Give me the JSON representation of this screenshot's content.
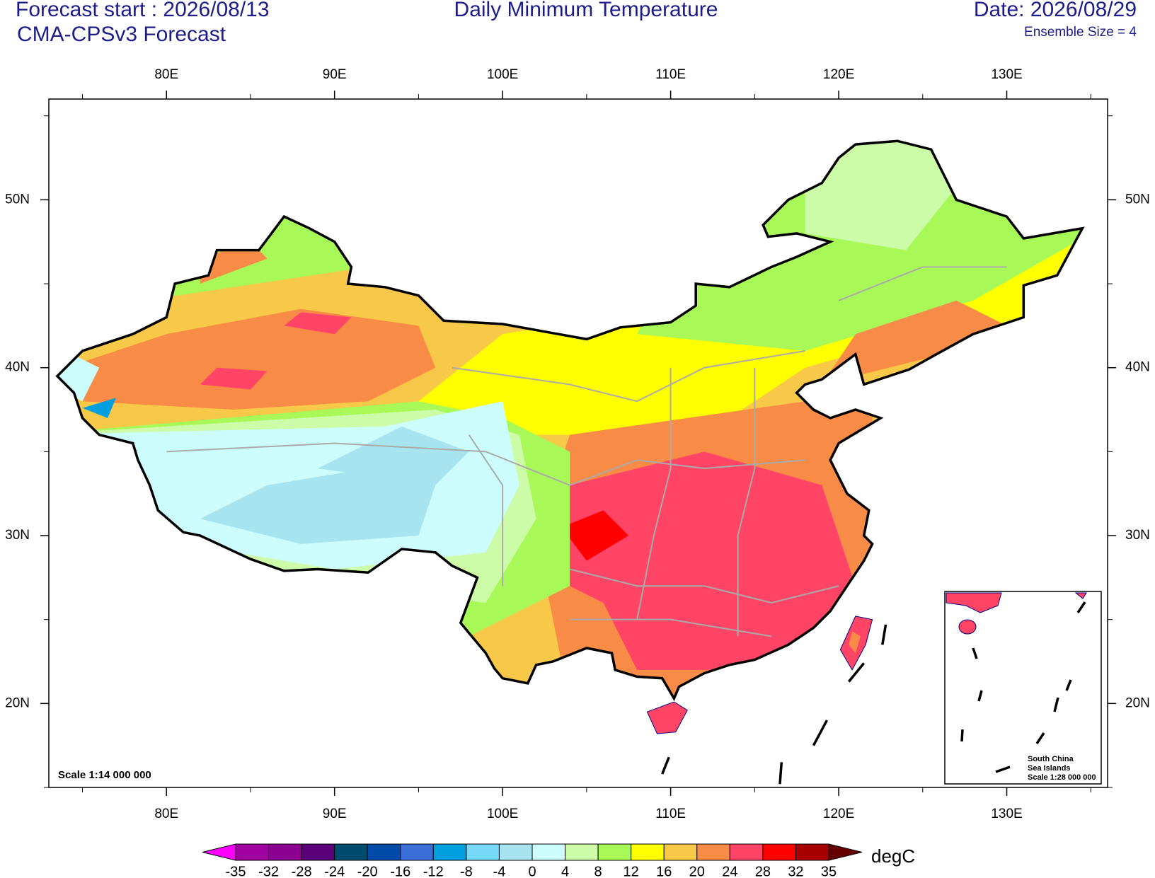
{
  "header": {
    "forecast_start": "Forecast start : 2026/08/13",
    "model": "CMA-CPSv3 Forecast",
    "title": "Daily Minimum Temperature",
    "date": "Date: 2026/08/29",
    "ensemble": "Ensemble Size = 4"
  },
  "map": {
    "lonlim": [
      73,
      136
    ],
    "latlim": [
      15,
      56
    ],
    "lon_ticks": [
      {
        "value": 80,
        "label": "80E"
      },
      {
        "value": 90,
        "label": "90E"
      },
      {
        "value": 100,
        "label": "100E"
      },
      {
        "value": 110,
        "label": "110E"
      },
      {
        "value": 120,
        "label": "120E"
      },
      {
        "value": 130,
        "label": "130E"
      }
    ],
    "lat_ticks": [
      {
        "value": 20,
        "label": "20N"
      },
      {
        "value": 30,
        "label": "30N"
      },
      {
        "value": 40,
        "label": "40N"
      },
      {
        "value": 50,
        "label": "50N"
      }
    ],
    "scale": "Scale 1:14 000 000",
    "inset": {
      "lines": [
        "South China",
        "Sea Islands",
        "Scale 1:28 000 000"
      ]
    }
  },
  "colorbar": {
    "levels": [
      -35,
      -32,
      -28,
      -24,
      -20,
      -16,
      -12,
      -8,
      -4,
      0,
      4,
      8,
      12,
      16,
      20,
      24,
      28,
      32,
      35
    ],
    "colors": [
      "#ff00ff",
      "#a000a0",
      "#8c0090",
      "#5a0078",
      "#004c6e",
      "#004ca8",
      "#3c6ed8",
      "#00a0e0",
      "#78d8f8",
      "#a8e4f0",
      "#ccfcfc",
      "#ccfca8",
      "#a8f858",
      "#ffff00",
      "#f8c848",
      "#f88c46",
      "#ff4466",
      "#ff0000",
      "#a80000",
      "#640000"
    ],
    "unit": "degC"
  }
}
